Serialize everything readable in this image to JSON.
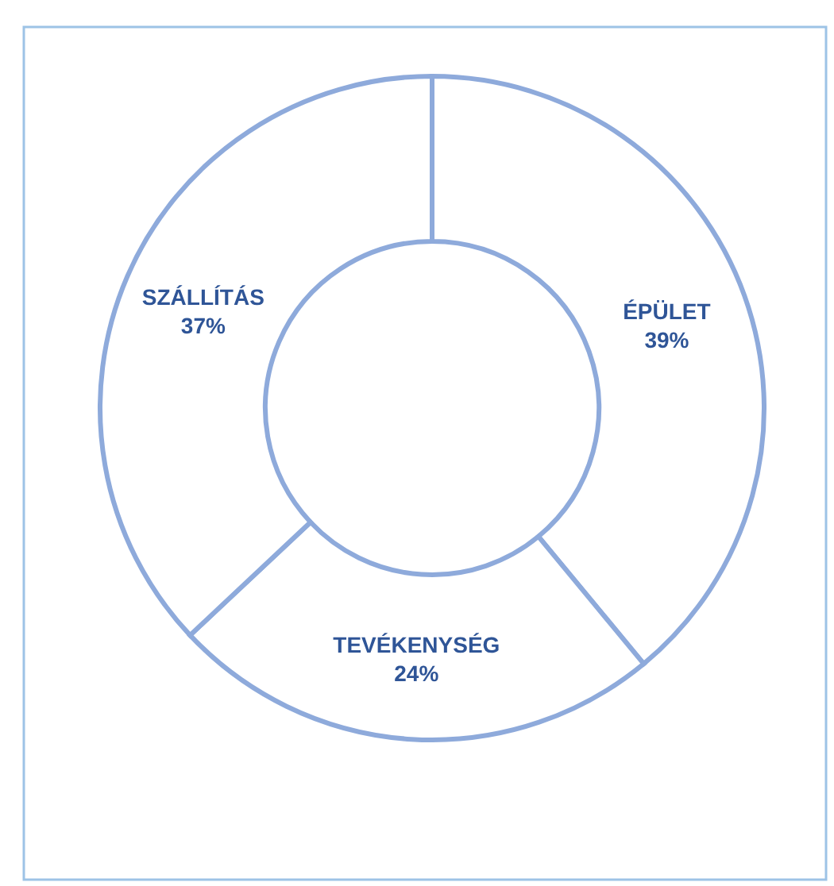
{
  "chart_data": {
    "type": "donut",
    "categories": [
      "ÉPÜLET",
      "TEVÉKENYSÉG",
      "SZÁLLÍTÁS"
    ],
    "values": [
      39,
      24,
      37
    ],
    "value_labels": [
      "39%",
      "24%",
      "37%"
    ],
    "colors": [
      "#ffffff",
      "#ffffff",
      "#ffffff"
    ]
  }
}
